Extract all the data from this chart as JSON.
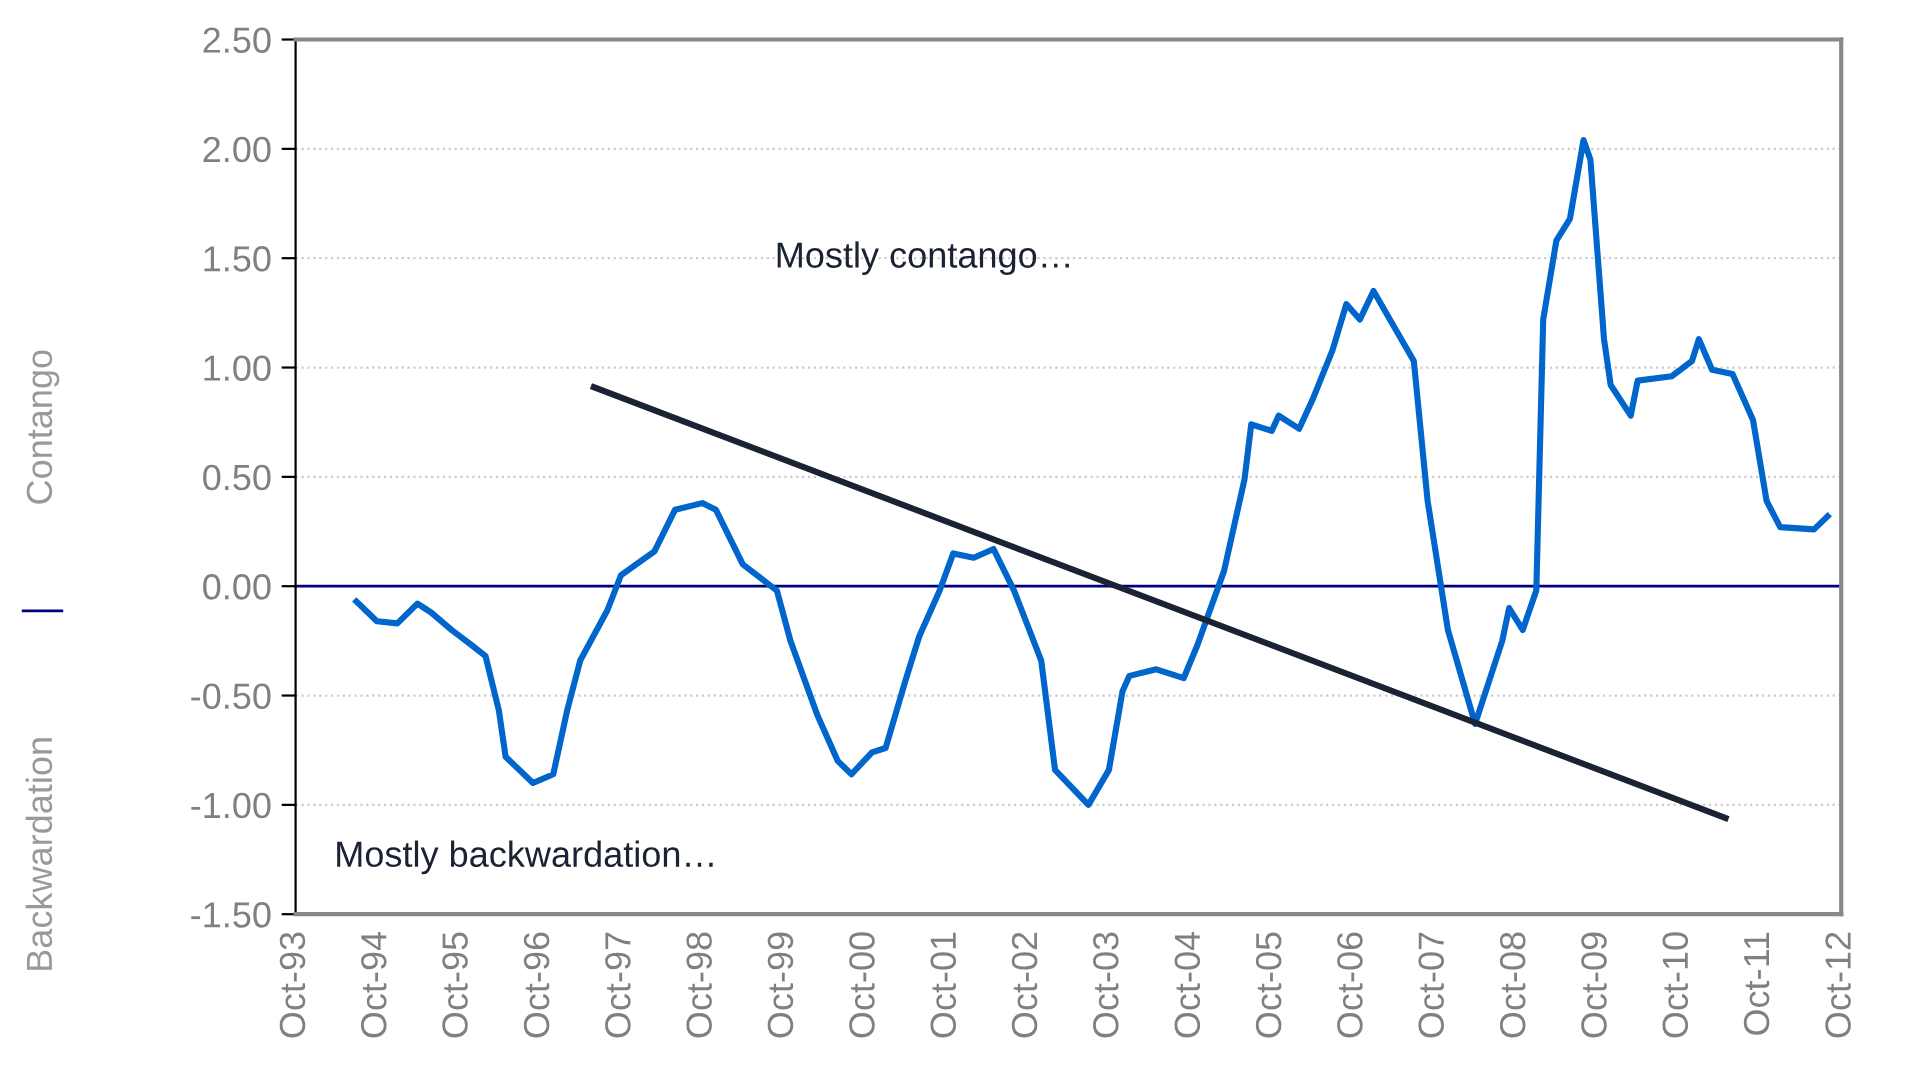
{
  "chart_data": {
    "type": "line",
    "x": [
      "1994-07",
      "1994-10",
      "1995-01",
      "1995-04",
      "1995-06",
      "1995-09",
      "1995-12",
      "1996-02",
      "1996-04",
      "1996-05",
      "1996-09",
      "1996-12",
      "1997-02",
      "1997-04",
      "1997-08",
      "1997-10",
      "1998-03",
      "1998-06",
      "1998-10",
      "1998-12",
      "1999-04",
      "1999-09",
      "1999-11",
      "2000-03",
      "2000-06",
      "2000-08",
      "2000-11",
      "2001-01",
      "2001-04",
      "2001-06",
      "2001-09",
      "2001-11",
      "2002-02",
      "2002-05",
      "2002-08",
      "2002-12",
      "2003-02",
      "2003-07",
      "2003-10",
      "2003-12",
      "2004-01",
      "2004-05",
      "2004-09",
      "2004-11",
      "2005-03",
      "2005-06",
      "2005-07",
      "2005-10",
      "2005-11",
      "2006-02",
      "2006-04",
      "2006-07",
      "2006-09",
      "2006-11",
      "2007-01",
      "2007-07",
      "2007-09",
      "2007-12",
      "2008-04",
      "2008-08",
      "2008-09",
      "2008-11",
      "2009-01",
      "2009-02",
      "2009-04",
      "2009-06",
      "2009-08",
      "2009-09",
      "2009-11",
      "2009-12",
      "2010-03",
      "2010-04",
      "2010-09",
      "2010-12",
      "2011-01",
      "2011-03",
      "2011-06",
      "2011-09",
      "2011-11",
      "2012-01",
      "2012-06",
      "2012-08"
    ],
    "series": [
      {
        "color": "#0066cc",
        "values": [
          -0.07,
          -0.16,
          -0.17,
          -0.08,
          -0.12,
          -0.2,
          -0.27,
          -0.32,
          -0.57,
          -0.78,
          -0.9,
          -0.86,
          -0.57,
          -0.34,
          -0.11,
          0.05,
          0.16,
          0.35,
          0.38,
          0.35,
          0.1,
          -0.02,
          -0.25,
          -0.59,
          -0.8,
          -0.86,
          -0.76,
          -0.74,
          -0.43,
          -0.23,
          -0.02,
          0.15,
          0.13,
          0.17,
          -0.02,
          -0.34,
          -0.84,
          -1.0,
          -0.84,
          -0.48,
          -0.41,
          -0.38,
          -0.42,
          -0.27,
          0.07,
          0.49,
          0.74,
          0.71,
          0.78,
          0.72,
          0.85,
          1.08,
          1.29,
          1.22,
          1.35,
          1.03,
          0.39,
          -0.2,
          -0.63,
          -0.25,
          -0.1,
          -0.2,
          -0.02,
          1.22,
          1.58,
          1.68,
          2.04,
          1.95,
          1.13,
          0.92,
          0.78,
          0.94,
          0.96,
          1.03,
          1.13,
          0.99,
          0.97,
          0.76,
          0.39,
          0.27,
          0.26,
          0.32
        ]
      },
      {
        "type": "line",
        "color": "#1a2233",
        "x": [
          "1997-06",
          "2011-05"
        ],
        "values": [
          0.91,
          -1.06
        ]
      }
    ],
    "xlim": [
      "1993-10",
      "2012-10"
    ],
    "xticks": [
      {
        "value": "1993-10",
        "label": "Oct-93"
      },
      {
        "value": "1994-10",
        "label": "Oct-94"
      },
      {
        "value": "1995-10",
        "label": "Oct-95"
      },
      {
        "value": "1996-10",
        "label": "Oct-96"
      },
      {
        "value": "1997-10",
        "label": "Oct-97"
      },
      {
        "value": "1998-10",
        "label": "Oct-98"
      },
      {
        "value": "1999-10",
        "label": "Oct-99"
      },
      {
        "value": "2000-10",
        "label": "Oct-00"
      },
      {
        "value": "2001-10",
        "label": "Oct-01"
      },
      {
        "value": "2002-10",
        "label": "Oct-02"
      },
      {
        "value": "2003-10",
        "label": "Oct-03"
      },
      {
        "value": "2004-10",
        "label": "Oct-04"
      },
      {
        "value": "2005-10",
        "label": "Oct-05"
      },
      {
        "value": "2006-10",
        "label": "Oct-06"
      },
      {
        "value": "2007-10",
        "label": "Oct-07"
      },
      {
        "value": "2008-10",
        "label": "Oct-08"
      },
      {
        "value": "2009-10",
        "label": "Oct-09"
      },
      {
        "value": "2010-10",
        "label": "Oct-10"
      },
      {
        "value": "2011-10",
        "label": "Oct-11"
      },
      {
        "value": "2012-10",
        "label": "Oct-12"
      }
    ],
    "ylim": [
      -1.5,
      2.5
    ],
    "yticks": [
      {
        "value": -1.5,
        "label": "-1.50"
      },
      {
        "value": -1.0,
        "label": "-1.00"
      },
      {
        "value": -0.5,
        "label": "-0.50"
      },
      {
        "value": 0,
        "label": "0.00"
      },
      {
        "value": 0.5,
        "label": "0.50"
      },
      {
        "value": 1.0,
        "label": "1.00"
      },
      {
        "value": 1.5,
        "label": "1.50"
      },
      {
        "value": 2.0,
        "label": "2.00"
      },
      {
        "value": 2.5,
        "label": "2.50"
      }
    ],
    "grid": "y",
    "ref_lines": [
      {
        "axis": "y",
        "value": 0,
        "color": "#000080"
      }
    ],
    "annotations": [
      "Mostly contango…",
      "Mostly backwardation…",
      "Contango",
      "Backwardation"
    ]
  }
}
